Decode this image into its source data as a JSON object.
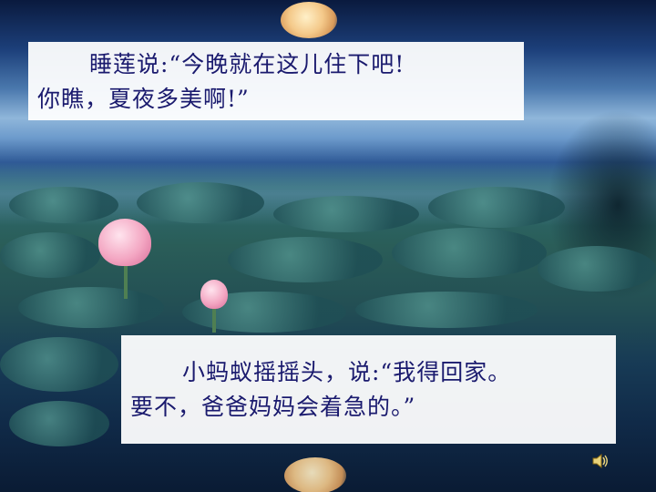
{
  "slide": {
    "caption_1": {
      "line_1": "睡莲说:“今晚就在这儿住下吧!",
      "line_2": "你瞧，夏夜多美啊!”"
    },
    "caption_2": {
      "line_1": "小蚂蚁摇摇头，说:“我得回家。",
      "line_2": "要不，爸爸妈妈会着急的。”"
    },
    "audio_icon": "speaker-icon"
  },
  "colors": {
    "text": "#1a1a6e",
    "caption_bg": "#ffffff",
    "sky": "#1c3f7a",
    "water": "#234f54",
    "lotus": "#f3a6c2",
    "moon": "#f4c98a"
  }
}
